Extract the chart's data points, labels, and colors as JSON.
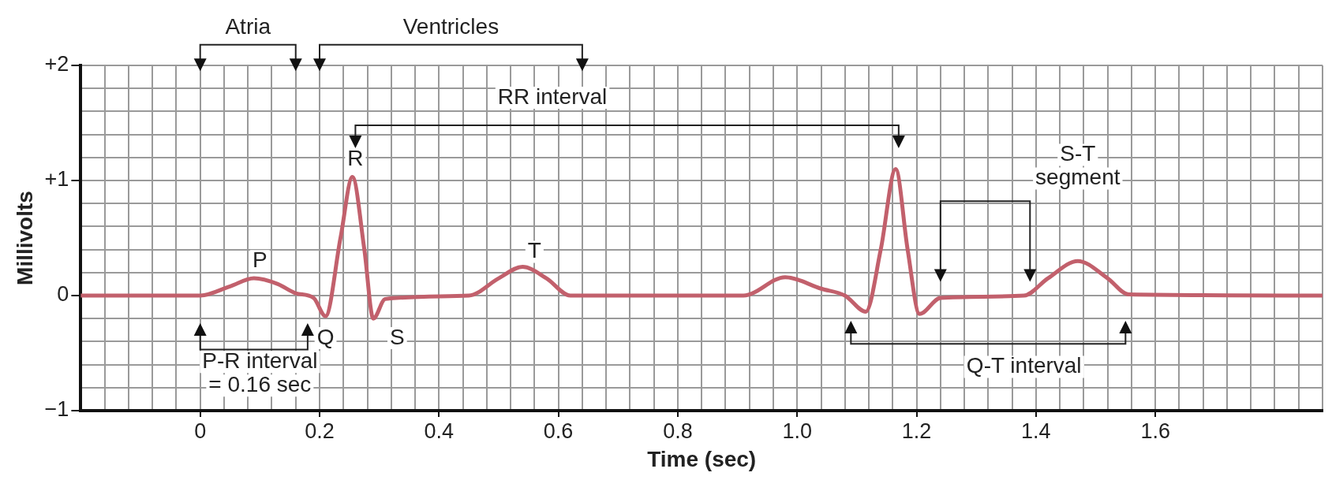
{
  "chart_data": {
    "type": "line",
    "xlabel": "Time (sec)",
    "ylabel": "Millivolts",
    "x": [
      -0.2,
      0,
      0.05,
      0.09,
      0.13,
      0.16,
      0.19,
      0.21,
      0.235,
      0.255,
      0.275,
      0.29,
      0.31,
      0.45,
      0.5,
      0.54,
      0.58,
      0.62,
      0.91,
      0.98,
      1.04,
      1.08,
      1.115,
      1.14,
      1.165,
      1.185,
      1.205,
      1.24,
      1.38,
      1.42,
      1.47,
      1.52,
      1.555,
      1.88
    ],
    "series": [
      {
        "color": "#c2606c",
        "values": [
          0,
          0,
          0.08,
          0.15,
          0.1,
          0.02,
          -0.02,
          -0.18,
          0.5,
          1.03,
          0.4,
          -0.2,
          -0.03,
          0,
          0.15,
          0.25,
          0.15,
          0,
          0,
          0.16,
          0.06,
          0,
          -0.14,
          0.4,
          1.1,
          0.4,
          -0.16,
          -0.02,
          0,
          0.15,
          0.3,
          0.15,
          0.01,
          0
        ]
      }
    ],
    "xlim": [
      -0.2,
      1.88
    ],
    "xticks": [
      {
        "value": -0.2,
        "label": null
      },
      {
        "value": -0.16,
        "label": null
      },
      {
        "value": -0.12,
        "label": null
      },
      {
        "value": -0.08,
        "label": null
      },
      {
        "value": -0.04,
        "label": null
      },
      0,
      {
        "value": 0.04,
        "label": null
      },
      {
        "value": 0.08,
        "label": null
      },
      {
        "value": 0.12,
        "label": null
      },
      {
        "value": 0.16,
        "label": null
      },
      0.2,
      {
        "value": 0.24,
        "label": null
      },
      {
        "value": 0.28,
        "label": null
      },
      {
        "value": 0.32,
        "label": null
      },
      {
        "value": 0.36,
        "label": null
      },
      0.4,
      {
        "value": 0.44,
        "label": null
      },
      {
        "value": 0.48,
        "label": null
      },
      {
        "value": 0.52,
        "label": null
      },
      {
        "value": 0.56,
        "label": null
      },
      0.6,
      {
        "value": 0.64,
        "label": null
      },
      {
        "value": 0.68,
        "label": null
      },
      {
        "value": 0.72,
        "label": null
      },
      {
        "value": 0.76,
        "label": null
      },
      0.8,
      {
        "value": 0.84,
        "label": null
      },
      {
        "value": 0.88,
        "label": null
      },
      {
        "value": 0.92,
        "label": null
      },
      {
        "value": 0.96,
        "label": null
      },
      {
        "value": 1,
        "label": "1.0"
      },
      {
        "value": 1.04,
        "label": null
      },
      {
        "value": 1.08,
        "label": null
      },
      {
        "value": 1.12,
        "label": null
      },
      {
        "value": 1.16,
        "label": null
      },
      1.2,
      {
        "value": 1.24,
        "label": null
      },
      {
        "value": 1.28,
        "label": null
      },
      {
        "value": 1.32,
        "label": null
      },
      {
        "value": 1.36,
        "label": null
      },
      1.4,
      {
        "value": 1.44,
        "label": null
      },
      {
        "value": 1.48,
        "label": null
      },
      {
        "value": 1.52,
        "label": null
      },
      {
        "value": 1.56,
        "label": null
      },
      1.6,
      {
        "value": 1.64,
        "label": null
      },
      {
        "value": 1.68,
        "label": null
      },
      {
        "value": 1.72,
        "label": null
      },
      {
        "value": 1.76,
        "label": null
      },
      {
        "value": 1.8,
        "label": null
      },
      {
        "value": 1.84,
        "label": null
      },
      {
        "value": 1.88,
        "label": null
      }
    ],
    "ylim": [
      -1,
      2
    ],
    "yticks": [
      {
        "value": -1,
        "label": "−1"
      },
      {
        "value": -0.8,
        "label": null
      },
      {
        "value": -0.6,
        "label": null
      },
      {
        "value": -0.4,
        "label": null
      },
      {
        "value": -0.2,
        "label": null
      },
      0,
      {
        "value": 0.2,
        "label": null
      },
      {
        "value": 0.4,
        "label": null
      },
      {
        "value": 0.6,
        "label": null
      },
      {
        "value": 0.8,
        "label": null
      },
      {
        "value": 1,
        "label": "+1"
      },
      {
        "value": 1.2,
        "label": null
      },
      {
        "value": 1.4,
        "label": null
      },
      {
        "value": 1.6,
        "label": null
      },
      {
        "value": 1.8,
        "label": null
      },
      {
        "value": 2,
        "label": "+2"
      }
    ],
    "grid": true,
    "legend": false,
    "marker": "none",
    "line_style": "solid",
    "annotations": [
      "Atria",
      "Ventricles",
      "RR interval",
      "R",
      "P",
      "T",
      "Q",
      "S",
      "S-T\nsegment",
      "P-R interval\n= 0.16 sec",
      "Q-T interval"
    ]
  }
}
